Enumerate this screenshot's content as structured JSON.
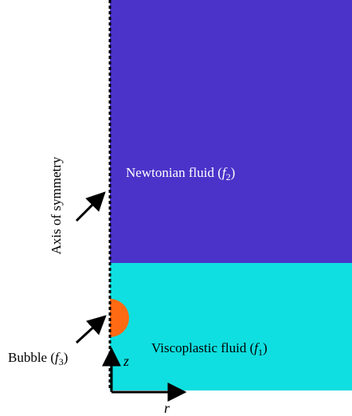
{
  "regions": {
    "newtonian": {
      "name": "Newtonian fluid (",
      "symbol": "f",
      "index": "2",
      "close": ")",
      "color": "#4b33c9"
    },
    "viscoplastic": {
      "name": "Viscoplastic fluid (",
      "symbol": "f",
      "index": "1",
      "close": ")",
      "color": "#0fdfe0"
    },
    "bubble": {
      "name": "Bubble (",
      "symbol": "f",
      "index": "3",
      "close": ")",
      "color": "#ff6a13"
    }
  },
  "axis": {
    "symmetry_label": "Axis of symmetry",
    "z_label": "z",
    "r_label": "r"
  }
}
